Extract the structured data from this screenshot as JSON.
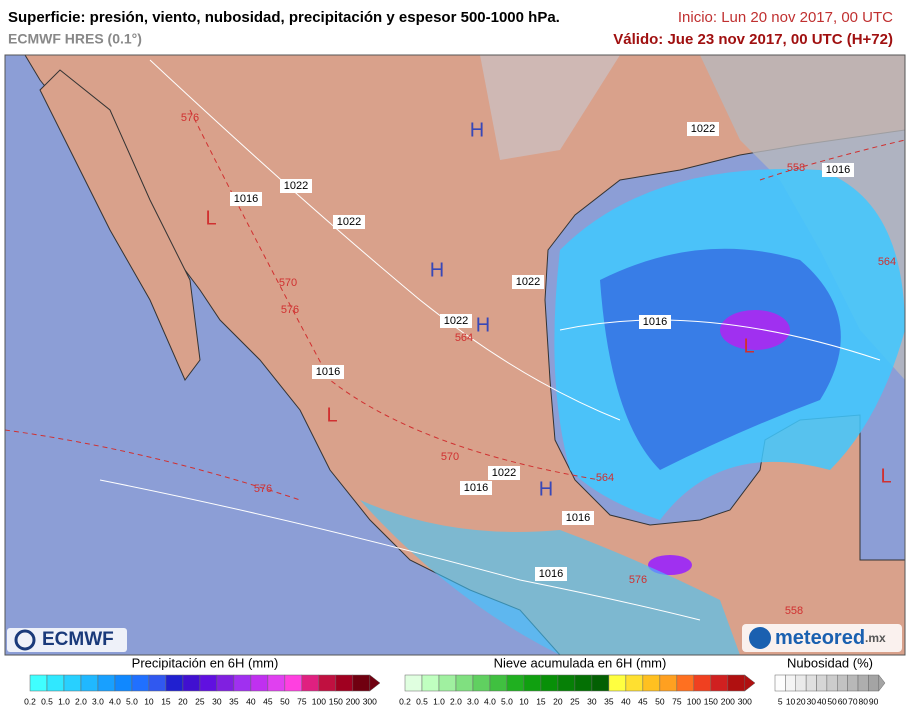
{
  "header": {
    "title": "Superficie: presión, viento, nubosidad, precipitación y espesor 500-1000 hPa.",
    "subtitle": "ECMWF HRES (0.1°)",
    "start": "Inicio: Lun 20 nov 2017, 00 UTC",
    "valid": "Válido: Jue 23 nov 2017, 00 UTC (H+72)"
  },
  "map": {
    "labels": [
      {
        "text": "H",
        "color": "#3848b8"
      },
      {
        "text": "1022",
        "color": "#000000"
      },
      {
        "text": "558",
        "color": "#d03030"
      },
      {
        "text": "1016",
        "color": "#000000"
      },
      {
        "text": "L",
        "color": "#d03030"
      },
      {
        "text": "1016",
        "color": "#000000"
      },
      {
        "text": "1022",
        "color": "#000000"
      },
      {
        "text": "1022",
        "color": "#000000"
      },
      {
        "text": "576",
        "color": "#d03030"
      },
      {
        "text": "H",
        "color": "#3848b8"
      },
      {
        "text": "1022",
        "color": "#000000"
      },
      {
        "text": "570",
        "color": "#d03030"
      },
      {
        "text": "576",
        "color": "#d03030"
      },
      {
        "text": "1022",
        "color": "#000000"
      },
      {
        "text": "H",
        "color": "#3848b8"
      },
      {
        "text": "564",
        "color": "#d03030"
      },
      {
        "text": "1016",
        "color": "#000000"
      },
      {
        "text": "L",
        "color": "#d03030"
      },
      {
        "text": "564",
        "color": "#d03030"
      },
      {
        "text": "1016",
        "color": "#000000"
      },
      {
        "text": "L",
        "color": "#d03030"
      },
      {
        "text": "570",
        "color": "#d03030"
      },
      {
        "text": "1022",
        "color": "#000000"
      },
      {
        "text": "1016",
        "color": "#000000"
      },
      {
        "text": "H",
        "color": "#3848b8"
      },
      {
        "text": "564",
        "color": "#d03030"
      },
      {
        "text": "1016",
        "color": "#000000"
      },
      {
        "text": "L",
        "color": "#d03030"
      },
      {
        "text": "576",
        "color": "#d03030"
      },
      {
        "text": "1016",
        "color": "#000000"
      },
      {
        "text": "576",
        "color": "#d03030"
      },
      {
        "text": "558",
        "color": "#d03030"
      }
    ]
  },
  "legends": [
    {
      "title": "Precipitación en 6H (mm)",
      "labels": [
        "0.2",
        "0.5",
        "1.0",
        "2.0",
        "3.0",
        "4.0",
        "5.0",
        "10",
        "15",
        "20",
        "25",
        "30",
        "35",
        "40",
        "45",
        "50",
        "75",
        "100",
        "150",
        "200",
        "300"
      ],
      "colors": [
        "#40ffff",
        "#30e8ff",
        "#28d0ff",
        "#20b8ff",
        "#18a0ff",
        "#1088ff",
        "#2070ff",
        "#3058f0",
        "#2020d0",
        "#4010d0",
        "#6010e0",
        "#8020e0",
        "#a030f0",
        "#c030f0",
        "#e040f0",
        "#ff40e0",
        "#e02080",
        "#c01040",
        "#a00020",
        "#700010"
      ]
    },
    {
      "title": "Nieve acumulada en 6H (mm)",
      "labels": [
        "0.2",
        "0.5",
        "1.0",
        "2.0",
        "3.0",
        "4.0",
        "5.0",
        "10",
        "15",
        "20",
        "25",
        "30",
        "35",
        "40",
        "45",
        "50",
        "75",
        "100",
        "150",
        "200",
        "300"
      ],
      "colors": [
        "#e0ffe0",
        "#c0ffc0",
        "#a0f0a0",
        "#80e080",
        "#60d060",
        "#40c040",
        "#20b020",
        "#10a010",
        "#089008",
        "#068006",
        "#047004",
        "#036003",
        "#ffff40",
        "#ffe030",
        "#ffc020",
        "#ffa020",
        "#ff7020",
        "#f04020",
        "#d02020",
        "#b01010"
      ]
    },
    {
      "title": "Nubosidad (%)",
      "labels": [
        "5",
        "10",
        "20",
        "30",
        "40",
        "50",
        "60",
        "70",
        "80",
        "90"
      ],
      "colors": [
        "#fdfdfd",
        "#f4f4f4",
        "#eaeaea",
        "#e0e0e0",
        "#d6d6d6",
        "#cccccc",
        "#c2c2c2",
        "#b8b8b8",
        "#aeaeae",
        "#a4a4a4"
      ]
    }
  ],
  "logos": {
    "left": "ECMWF",
    "right": "meteored",
    "right_suffix": ".mx"
  }
}
